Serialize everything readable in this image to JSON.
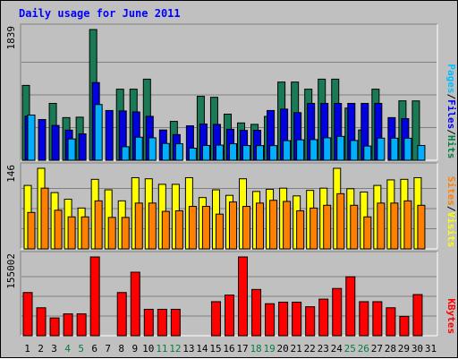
{
  "title": "Daily usage for June 2011",
  "chart_data": {
    "type": "bar",
    "title": "Daily usage for June 2011",
    "categories": [
      "1",
      "2",
      "3",
      "4",
      "5",
      "6",
      "7",
      "8",
      "9",
      "10",
      "11",
      "12",
      "13",
      "14",
      "15",
      "16",
      "17",
      "18",
      "19",
      "20",
      "21",
      "22",
      "23",
      "24",
      "25",
      "26",
      "27",
      "28",
      "29",
      "30",
      "31"
    ],
    "weekend_days": [
      "4",
      "5",
      "11",
      "12",
      "18",
      "19",
      "25",
      "26"
    ],
    "panels": [
      {
        "name": "hits-files-pages",
        "max_label": "1839",
        "ylim": [
          0,
          1839
        ],
        "legend": [
          {
            "label": "Pages",
            "color": "#00c0ff"
          },
          {
            "label": "/",
            "color": "#000000"
          },
          {
            "label": "Files",
            "color": "#0000ff"
          },
          {
            "label": "/",
            "color": "#000000"
          },
          {
            "label": "Hits",
            "color": "#008040"
          }
        ],
        "series": [
          {
            "name": "Hits",
            "color": "#1a7a56",
            "values": [
              1053,
              0,
              800,
              600,
              606,
              1839,
              0,
              1000,
              1000,
              1141,
              0,
              547,
              0,
              900,
              886,
              649,
              525,
              505,
              617,
              1100,
              1100,
              1000,
              1141,
              1141,
              734,
              426,
              1000,
              0,
              836,
              835,
              0
            ]
          },
          {
            "name": "Files",
            "color": "#0000e0",
            "values": [
              620,
              573,
              490,
              424,
              371,
              1093,
              700,
              694,
              680,
              618,
              426,
              361,
              485,
              510,
              505,
              436,
              420,
              422,
              700,
              720,
              670,
              800,
              800,
              800,
              800,
              800,
              800,
              600,
              586,
              0,
              0
            ]
          },
          {
            "name": "Pages",
            "color": "#00b0ff",
            "values": [
              636,
              0,
              0,
              300,
              0,
              784,
              0,
              190,
              324,
              316,
              236,
              232,
              170,
              208,
              213,
              232,
              207,
              206,
              206,
              276,
              288,
              291,
              316,
              336,
              278,
              200,
              311,
              311,
              310,
              208,
              0
            ]
          }
        ]
      },
      {
        "name": "visits-sites",
        "max_label": "146",
        "ylim": [
          0,
          146
        ],
        "legend": [
          {
            "label": "Sites",
            "color": "#ff8000"
          },
          {
            "label": "/",
            "color": "#000000"
          },
          {
            "label": "Visits",
            "color": "#ffff00"
          }
        ],
        "series": [
          {
            "name": "Visits",
            "color": "#ffff00",
            "values": [
              115,
              146,
              102,
              90,
              74,
              126,
              107,
              87,
              129,
              127,
              117,
              117,
              129,
              93,
              107,
              97,
              127,
              104,
              108,
              110,
              96,
              106,
              110,
              146,
              109,
              103,
              115,
              125,
              126,
              129,
              0
            ]
          },
          {
            "name": "Sites",
            "color": "#ff8000",
            "values": [
              66,
              110,
              70,
              58,
              58,
              87,
              57,
              57,
              83,
              83,
              68,
              69,
              77,
              77,
              63,
              85,
              77,
              83,
              88,
              86,
              69,
              74,
              79,
              100,
              79,
              58,
              83,
              83,
              87,
              79,
              0
            ]
          }
        ]
      },
      {
        "name": "kbytes",
        "max_label": "155002",
        "ylim": [
          0,
          155002
        ],
        "legend": [
          {
            "label": "KBytes",
            "color": "#ff0000"
          }
        ],
        "series": [
          {
            "name": "KBytes",
            "color": "#ff0000",
            "values": [
              85000,
              55000,
              35000,
              43000,
              43000,
              155002,
              0,
              85000,
              125000,
              52000,
              52000,
              52000,
              0,
              0,
              67000,
              80000,
              155002,
              91000,
              63000,
              66000,
              66000,
              57000,
              72000,
              93000,
              116000,
              67000,
              67000,
              55000,
              38000,
              81000,
              0
            ]
          }
        ]
      }
    ]
  }
}
